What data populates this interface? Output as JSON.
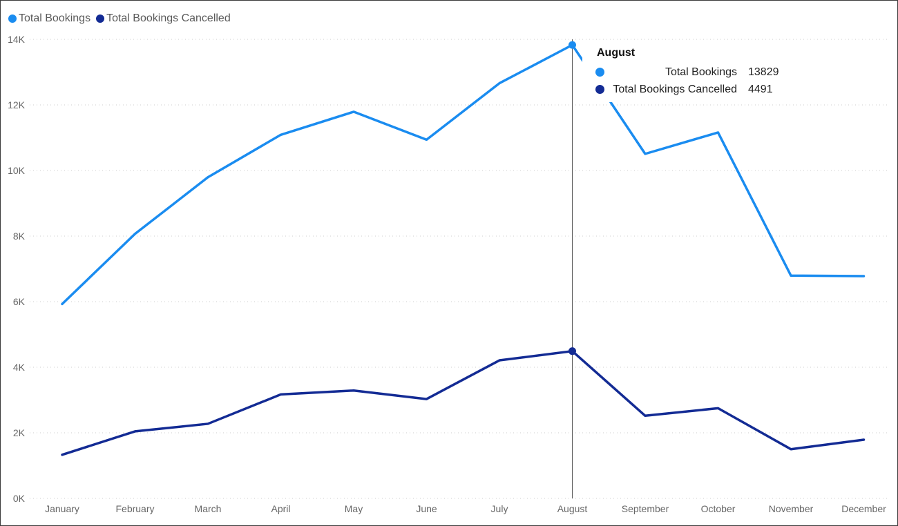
{
  "colors": {
    "total_bookings": "#1a8cf0",
    "total_bookings_cancelled": "#132b94",
    "crosshair": "#555555",
    "grid": "#cccccc",
    "axis_text": "#666666"
  },
  "legend": {
    "items": [
      {
        "label": "Total Bookings",
        "color": "#1a8cf0"
      },
      {
        "label": "Total Bookings Cancelled",
        "color": "#132b94"
      }
    ]
  },
  "tooltip": {
    "title": "August",
    "rows": [
      {
        "label": "Total Bookings",
        "value": "13829",
        "color": "#1a8cf0"
      },
      {
        "label": "Total Bookings Cancelled",
        "value": "4491",
        "color": "#132b94"
      }
    ]
  },
  "chart_data": {
    "type": "line",
    "categories": [
      "January",
      "February",
      "March",
      "April",
      "May",
      "June",
      "July",
      "August",
      "September",
      "October",
      "November",
      "December"
    ],
    "series": [
      {
        "name": "Total Bookings",
        "color": "#1a8cf0",
        "values": [
          5929,
          8068,
          9794,
          11089,
          11791,
          10939,
          12661,
          13829,
          10508,
          11160,
          6794,
          6780
        ]
      },
      {
        "name": "Total Bookings Cancelled",
        "color": "#132b94",
        "values": [
          1330,
          2044,
          2275,
          3170,
          3290,
          3030,
          4210,
          4491,
          2520,
          2750,
          1500,
          1790
        ]
      }
    ],
    "title": "",
    "xlabel": "",
    "ylabel": "",
    "ylim": [
      0,
      14000
    ],
    "yticks": [
      "0K",
      "2K",
      "4K",
      "6K",
      "8K",
      "10K",
      "12K",
      "14K"
    ],
    "grid": true,
    "legend_position": "top-left",
    "highlighted_category": "August"
  }
}
